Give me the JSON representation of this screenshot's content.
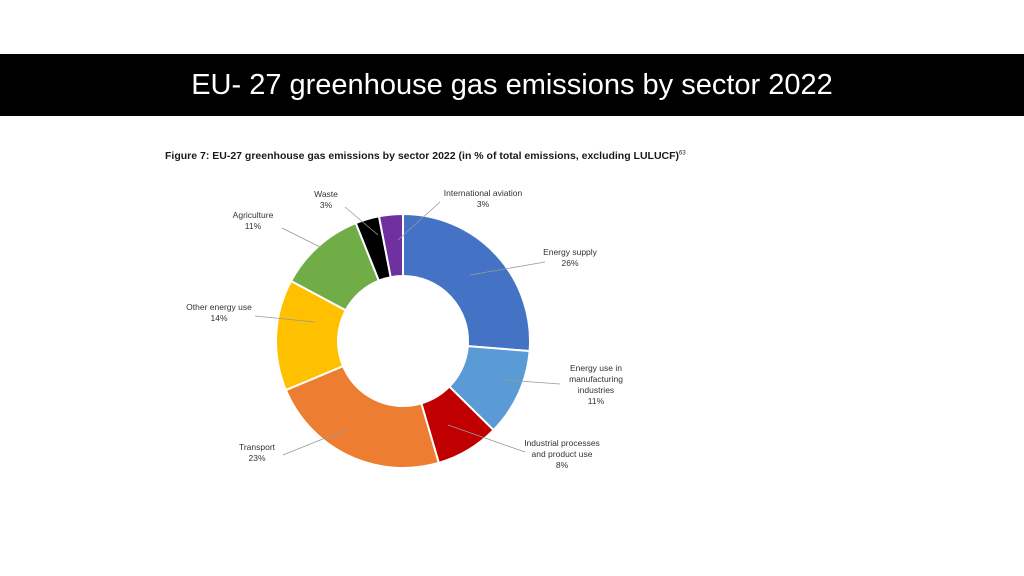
{
  "slide": {
    "title": "EU- 27 greenhouse gas emissions by sector 2022"
  },
  "figure": {
    "caption": "Figure 7: EU-27 greenhouse gas emissions by sector 2022 (in % of total emissions, excluding LULUCF)",
    "caption_superscript": "63"
  },
  "chart_data": {
    "type": "pie",
    "donut": true,
    "unit": "%",
    "slices": [
      {
        "label": "Energy supply",
        "value": 26,
        "display": "26%",
        "color": "#4472c4"
      },
      {
        "label": "Energy use in manufacturing industries",
        "value": 11,
        "display": "11%",
        "color": "#5b9bd5"
      },
      {
        "label": "Industrial processes and product use",
        "value": 8,
        "display": "8%",
        "color": "#c00000"
      },
      {
        "label": "Transport",
        "value": 23,
        "display": "23%",
        "color": "#ed7d31"
      },
      {
        "label": "Other energy use",
        "value": 14,
        "display": "14%",
        "color": "#ffc000"
      },
      {
        "label": "Agriculture",
        "value": 11,
        "display": "11%",
        "color": "#70ad47"
      },
      {
        "label": "Waste",
        "value": 3,
        "display": "3%",
        "color": "#000000"
      },
      {
        "label": "International aviation",
        "value": 3,
        "display": "3%",
        "color": "#7030a0"
      }
    ]
  }
}
